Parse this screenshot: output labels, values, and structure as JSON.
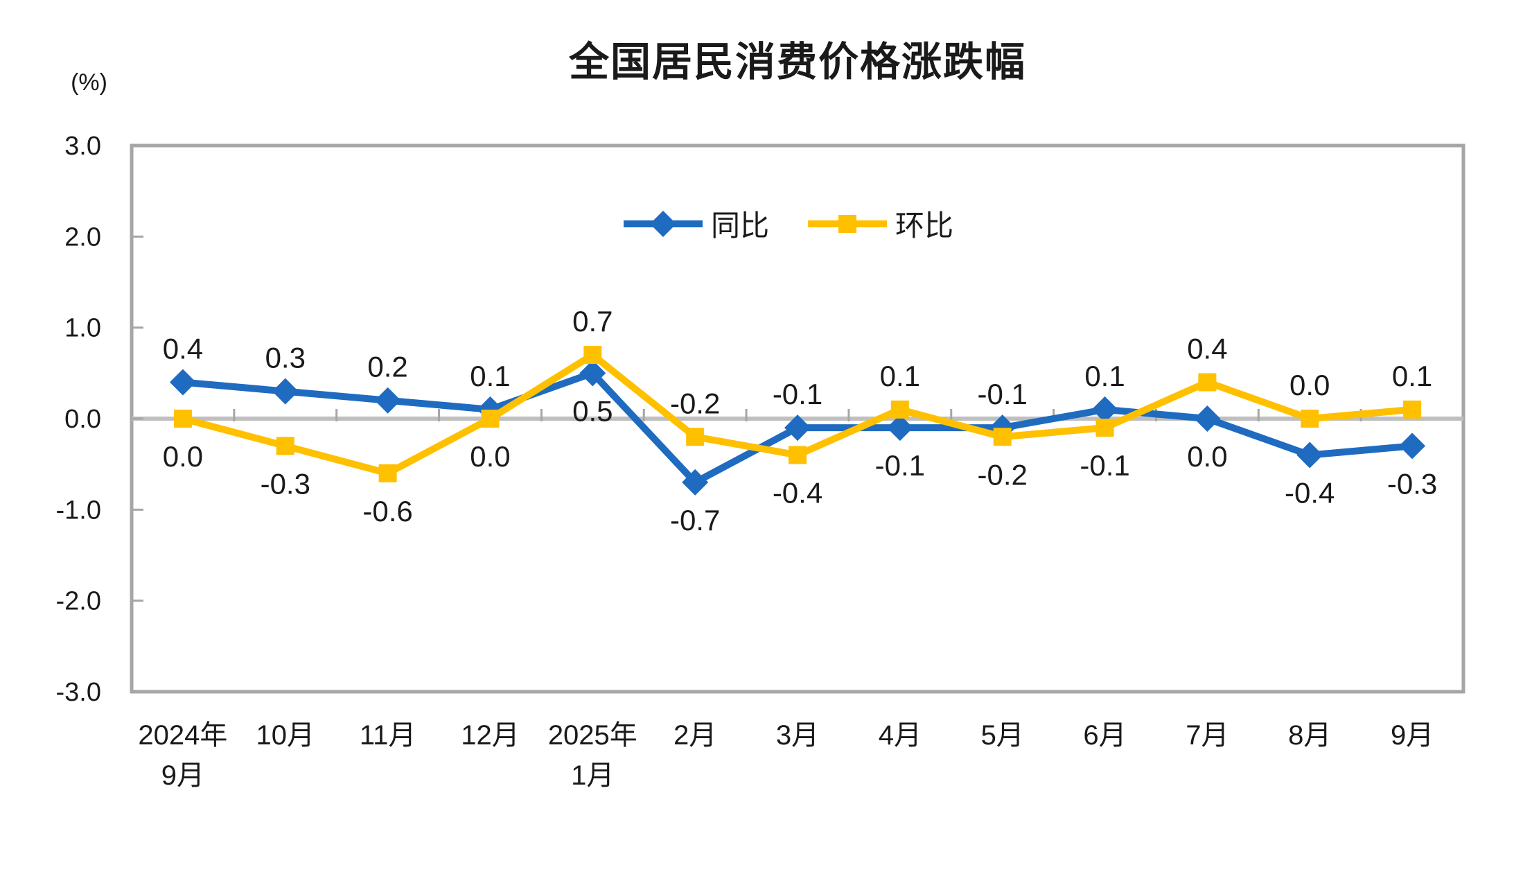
{
  "page": {
    "background": "#ffffff"
  },
  "chart": {
    "title": "全国居民消费价格涨跌幅",
    "unit_label": "(%)",
    "frame_color": "#a6a6a6",
    "zero_line_color": "#bfbfbf",
    "tick_color": "#a6a6a6",
    "text_color": "#1a1a1a"
  },
  "chart_data": {
    "type": "line",
    "title": "全国居民消费价格涨跌幅",
    "ylabel": "(%)",
    "xlabel": "",
    "ylim": [
      -3.0,
      3.0
    ],
    "ytick_step": 1.0,
    "yticks": [
      "3.0",
      "2.0",
      "1.0",
      "0.0",
      "-1.0",
      "-2.0",
      "-3.0"
    ],
    "grid": false,
    "data_labels": true,
    "label_decimals": 1,
    "legend_position": "top-center-inside",
    "categories": [
      "2024年\n9月",
      "10月",
      "11月",
      "12月",
      "2025年\n1月",
      "2月",
      "3月",
      "4月",
      "5月",
      "6月",
      "7月",
      "8月",
      "9月"
    ],
    "series": [
      {
        "name": "同比",
        "color": "#1e6bc0",
        "marker": "diamond",
        "values": [
          0.4,
          0.3,
          0.2,
          0.1,
          0.5,
          -0.7,
          -0.1,
          -0.1,
          -0.1,
          0.1,
          0.0,
          -0.4,
          -0.3
        ]
      },
      {
        "name": "环比",
        "color": "#ffc000",
        "marker": "square",
        "values": [
          0.0,
          -0.3,
          -0.6,
          0.0,
          0.7,
          -0.2,
          -0.4,
          0.1,
          -0.2,
          -0.1,
          0.4,
          0.0,
          0.1
        ]
      }
    ]
  }
}
